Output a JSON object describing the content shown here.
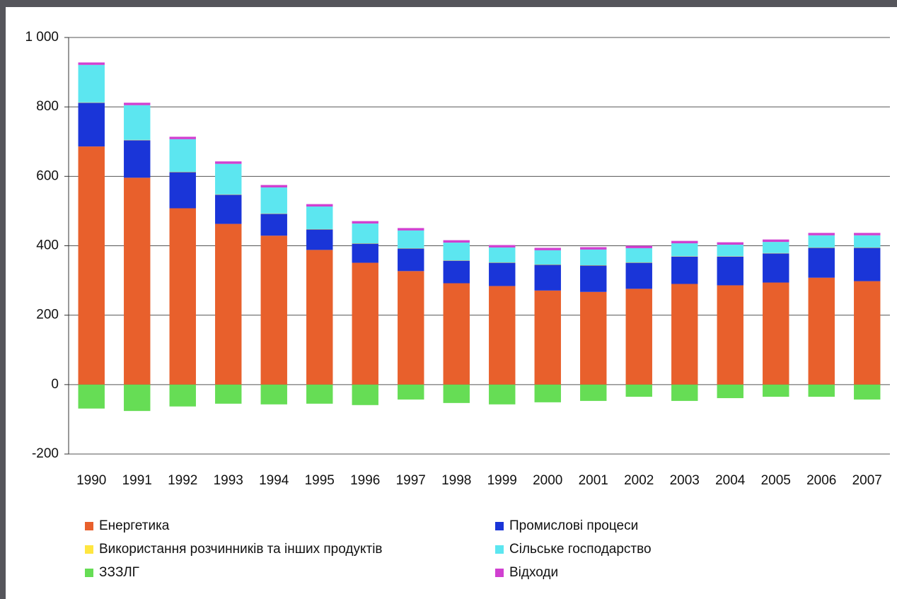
{
  "chart_data": {
    "type": "bar",
    "stacked": true,
    "categories": [
      "1990",
      "1991",
      "1992",
      "1993",
      "1994",
      "1995",
      "1996",
      "1997",
      "1998",
      "1999",
      "2000",
      "2001",
      "2002",
      "2003",
      "2004",
      "2005",
      "2006",
      "2007"
    ],
    "series": [
      {
        "name": "Енергетика",
        "color": "#e8602c",
        "values": [
          686,
          596,
          508,
          463,
          429,
          388,
          351,
          327,
          292,
          284,
          271,
          267,
          276,
          290,
          286,
          294,
          308,
          298
        ]
      },
      {
        "name": "Промислові процеси",
        "color": "#1a35d8",
        "values": [
          126,
          108,
          104,
          84,
          63,
          59,
          55,
          65,
          65,
          67,
          74,
          76,
          75,
          79,
          83,
          84,
          86,
          96
        ]
      },
      {
        "name": "Використання розчинників та інших продуктів",
        "color": "#ffe640",
        "values": [
          1,
          1,
          1,
          1,
          1,
          1,
          1,
          1,
          1,
          1,
          1,
          1,
          1,
          1,
          1,
          1,
          1,
          1
        ]
      },
      {
        "name": "Сільське господарство",
        "color": "#5ce6f0",
        "values": [
          108,
          100,
          94,
          88,
          75,
          65,
          57,
          51,
          51,
          43,
          41,
          45,
          41,
          37,
          33,
          32,
          35,
          35
        ]
      },
      {
        "name": "ЗЗЗЛГ",
        "color": "#66dd55",
        "values": [
          -69,
          -76,
          -63,
          -55,
          -57,
          -55,
          -59,
          -43,
          -53,
          -57,
          -51,
          -47,
          -35,
          -47,
          -39,
          -35,
          -35,
          -43
        ]
      },
      {
        "name": "Відходи",
        "color": "#d040d0",
        "values": [
          7,
          7,
          7,
          7,
          7,
          7,
          7,
          7,
          7,
          7,
          7,
          7,
          7,
          7,
          7,
          7,
          7,
          7
        ]
      }
    ],
    "ylim": [
      -200,
      1000
    ],
    "yticks": [
      -200,
      0,
      200,
      400,
      600,
      800,
      {
        "value": 1000,
        "label": "1 000"
      }
    ],
    "grid": true
  }
}
